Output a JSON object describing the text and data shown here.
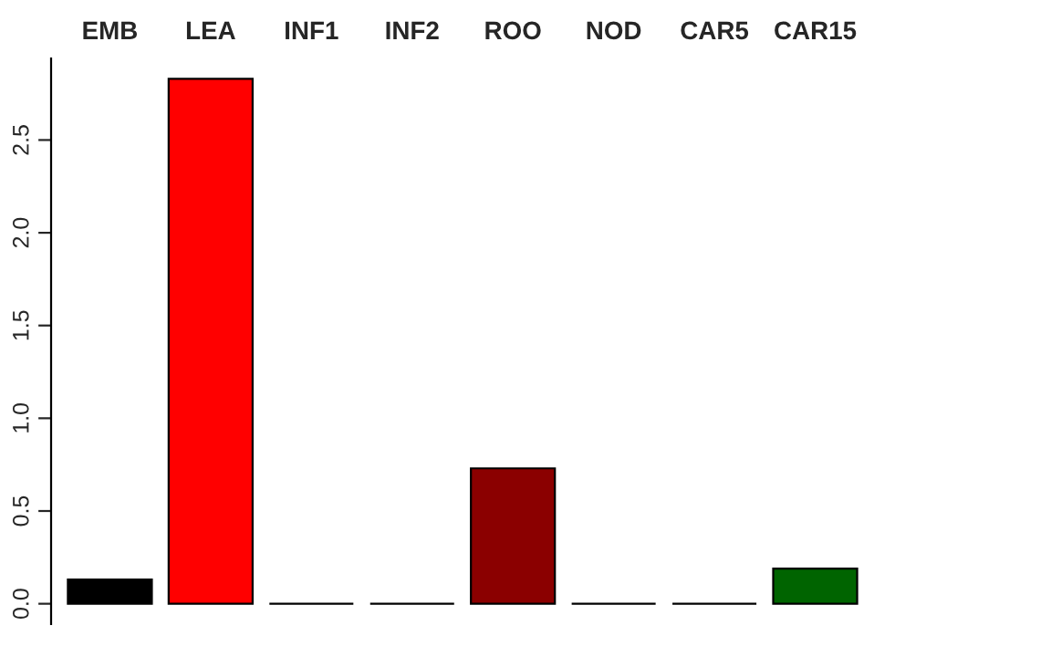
{
  "chart_data": {
    "type": "bar",
    "categories": [
      "EMB",
      "LEA",
      "INF1",
      "INF2",
      "ROO",
      "NOD",
      "CAR5",
      "CAR15"
    ],
    "values": [
      0.13,
      2.83,
      0,
      0,
      0.73,
      0,
      0,
      0.19
    ],
    "colors": [
      "#000000",
      "#ff0000",
      "#000000",
      "#000000",
      "#8b0000",
      "#000000",
      "#000000",
      "#006400"
    ],
    "ylim": [
      -0.11,
      2.94
    ],
    "yticks": [
      {
        "value": 0,
        "label": "0.0"
      },
      {
        "value": 0.5,
        "label": "0.5"
      },
      {
        "value": 1,
        "label": "1.0"
      },
      {
        "value": 1.5,
        "label": "1.5"
      },
      {
        "value": 2,
        "label": "2.0"
      },
      {
        "value": 2.5,
        "label": "2.5"
      }
    ],
    "grid": false,
    "legend": false
  }
}
